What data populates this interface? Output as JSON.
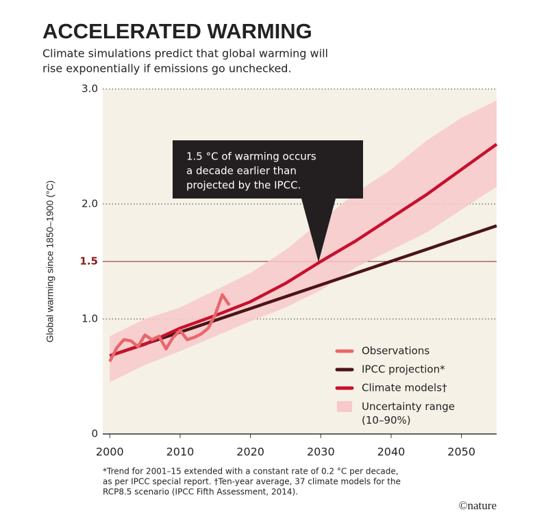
{
  "chart_data": {
    "type": "line",
    "title": "ACCELERATED WARMING",
    "subtitle": [
      "Climate simulations predict that global warming will",
      "rise exponentially if emissions go unchecked."
    ],
    "y_label": "Global warming since 1850–1900 (°C)",
    "xlim": [
      1999,
      2055
    ],
    "xticks": [
      2000,
      2010,
      2020,
      2030,
      2040,
      2050
    ],
    "ylim": [
      0,
      3
    ],
    "yticks": [
      {
        "value": 0,
        "label": "0"
      },
      {
        "value": 1,
        "label": "1.0"
      },
      {
        "value": 1.5,
        "label": "1.5"
      },
      {
        "value": 2,
        "label": "2.0"
      },
      {
        "value": 3,
        "label": "3.0"
      }
    ],
    "reference_line": {
      "value": 1.5,
      "color": "#8b1a1a"
    },
    "grid": true,
    "legend": "lower right",
    "series": [
      {
        "name": "Uncertainty range (10–90%)",
        "kind": "band",
        "color": "#f7c9c9",
        "x": [
          2000,
          2005,
          2010,
          2015,
          2020,
          2025,
          2030,
          2035,
          2040,
          2045,
          2050,
          2055
        ],
        "lower": [
          0.45,
          0.6,
          0.72,
          0.85,
          0.98,
          1.1,
          1.25,
          1.45,
          1.6,
          1.75,
          1.95,
          2.15
        ],
        "upper": [
          0.85,
          1.0,
          1.1,
          1.25,
          1.4,
          1.6,
          1.85,
          2.1,
          2.3,
          2.55,
          2.75,
          2.9
        ]
      },
      {
        "name": "Observations",
        "color": "#e8676b",
        "x": [
          2000,
          2001,
          2002,
          2003,
          2004,
          2005,
          2006,
          2007,
          2008,
          2009,
          2010,
          2011,
          2012,
          2013,
          2014,
          2015,
          2016,
          2017
        ],
        "values": [
          0.63,
          0.75,
          0.82,
          0.81,
          0.76,
          0.86,
          0.82,
          0.85,
          0.74,
          0.84,
          0.9,
          0.82,
          0.84,
          0.87,
          0.92,
          1.04,
          1.21,
          1.12
        ]
      },
      {
        "name": "IPCC projection*",
        "color": "#4a1418",
        "x": [
          2000,
          2055
        ],
        "values": [
          0.68,
          1.81
        ]
      },
      {
        "name": "Climate models†",
        "color": "#c8102e",
        "x": [
          2000,
          2005,
          2010,
          2015,
          2020,
          2025,
          2030,
          2035,
          2040,
          2045,
          2050,
          2055
        ],
        "values": [
          0.68,
          0.78,
          0.92,
          1.03,
          1.15,
          1.31,
          1.5,
          1.68,
          1.88,
          2.08,
          2.3,
          2.52
        ]
      }
    ],
    "annotation": [
      "1.5 °C of warming occurs",
      "a decade earlier than",
      "projected by the IPCC."
    ],
    "footnote": [
      "*Trend for 2001–15 extended with a constant rate of 0.2 °C per decade,",
      "as per IPCC special report. †Ten-year average, 37 climate models for the",
      "RCP8.5 scenario (IPCC Fifth Assessment, 2014)."
    ],
    "credit": "©nature"
  }
}
